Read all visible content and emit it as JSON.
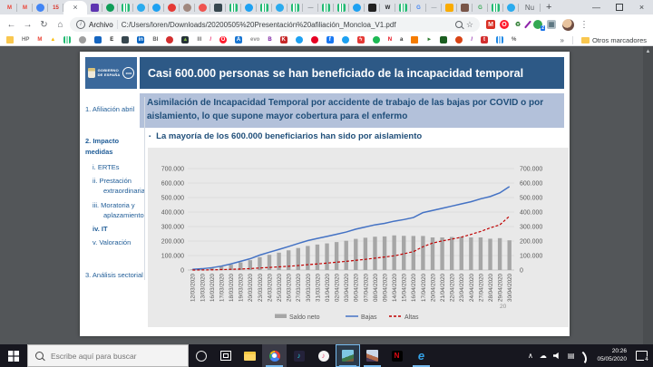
{
  "browser": {
    "new_tab_label": "+",
    "active_tab_close": "×",
    "window_controls": {
      "minimize": "—",
      "close": "×"
    },
    "tabs": [
      {
        "name": "gmail-tab",
        "glyph": "M",
        "fg": "#ea4335"
      },
      {
        "name": "gmail-tab-2",
        "glyph": "M",
        "fg": "#ea4335"
      },
      {
        "name": "account-tab",
        "bg": "#4285f4",
        "round": true
      },
      {
        "name": "calendar-tab",
        "glyph": "15",
        "fg": "#d93025"
      },
      {
        "name": "pdf-tab",
        "type": "active"
      },
      {
        "name": "purple-app-tab",
        "bg": "#5e35b1"
      },
      {
        "name": "green-dot-tab",
        "bg": "#0f9d58",
        "round": true
      },
      {
        "name": "green-app-tab",
        "bg": "#21ba72",
        "kind": "bars"
      },
      {
        "name": "telegram-tab",
        "bg": "#2aabee",
        "round": true
      },
      {
        "name": "twitter-tab",
        "bg": "#1da1f2",
        "round": true
      },
      {
        "name": "red-circle-tab",
        "bg": "#e53935",
        "round": true
      },
      {
        "name": "tan-app-tab",
        "bg": "#a1887f",
        "round": true
      },
      {
        "name": "red-heart-tab",
        "bg": "#ef5350",
        "round": true
      },
      {
        "name": "dark-app-tab",
        "bg": "#37474f"
      },
      {
        "name": "green-app-tab-2",
        "bg": "#21ba72",
        "kind": "bars"
      },
      {
        "name": "twitter-tab-2",
        "bg": "#1da1f2",
        "round": true
      },
      {
        "name": "green-app-tab-3",
        "bg": "#21ba72",
        "kind": "bars"
      },
      {
        "name": "telegram-tab-2",
        "bg": "#2aabee",
        "round": true
      },
      {
        "name": "green-app-tab-4",
        "bg": "#21ba72",
        "kind": "bars"
      },
      {
        "name": "dash-tab",
        "glyph": "—",
        "fg": "#80868b"
      },
      {
        "name": "green-app-tab-5",
        "bg": "#21ba72",
        "kind": "bars"
      },
      {
        "name": "green-app-tab-6",
        "bg": "#21ba72",
        "kind": "bars"
      },
      {
        "name": "twitter-tab-3",
        "bg": "#1da1f2",
        "round": true
      },
      {
        "name": "dark-app-tab-2",
        "bg": "#212121"
      },
      {
        "name": "wikipedia-tab",
        "glyph": "W",
        "fg": "#202124"
      },
      {
        "name": "green-app-tab-7",
        "bg": "#21ba72",
        "kind": "bars"
      },
      {
        "name": "google-tab",
        "glyph": "G",
        "fg": "#4285f4"
      },
      {
        "name": "dash-tab-2",
        "glyph": "—",
        "fg": "#9aa0a6"
      },
      {
        "name": "yellow-app-tab",
        "bg": "#f9ab00"
      },
      {
        "name": "brown-app-tab",
        "bg": "#795548"
      },
      {
        "name": "google-tab-2",
        "glyph": "G",
        "fg": "#34a853"
      },
      {
        "name": "green-app-tab-8",
        "bg": "#21ba72",
        "kind": "bars"
      },
      {
        "name": "telegram-tab-3",
        "bg": "#2aabee",
        "round": true
      },
      {
        "name": "nu-tab",
        "type": "text",
        "label": "Nu"
      }
    ],
    "toolbar": {
      "back": "←",
      "forward": "→",
      "reload": "↻",
      "home": "⌂",
      "info_icon": "i",
      "address_prefix": "Archivo",
      "address_path": "C:/Users/loren/Downloads/20200505%20Presentación%20afiliación_Moncloa_V1.pdf",
      "bookmark_star": "☆",
      "menu_kebab": "⋮"
    },
    "extensions": [
      {
        "name": "m14-extension-icon",
        "bg": "#d93025",
        "glyph": "M",
        "fg": "#fff"
      },
      {
        "name": "opera-extension-icon",
        "bg": "#ff1b2d",
        "round": true,
        "glyph": "O",
        "fg": "#fff"
      },
      {
        "name": "recycle-extension-icon",
        "glyph": "♻",
        "fg": "#2e7d32"
      },
      {
        "name": "pen-extension-icon",
        "kind": "pen"
      },
      {
        "name": "green-badge-extension-icon",
        "bg": "#34a853",
        "round": true,
        "badge": "2"
      },
      {
        "name": "gray-extension-icon",
        "bg": "#b0bec5",
        "glyph": "▦",
        "fg": "#546e7a"
      }
    ],
    "bookmarks": [
      {
        "name": "folder-bookmark",
        "bg": "#f9c74f",
        "kind": "folder"
      },
      {
        "name": "hp-bookmark",
        "glyph": "HP",
        "fg": "#757575",
        "kind": "text"
      },
      {
        "name": "gmail-bookmark",
        "glyph": "M",
        "fg": "#ea4335",
        "kind": "text"
      },
      {
        "name": "drive-bookmark",
        "glyph": "▲",
        "fg": "#fbbc04",
        "kind": "text"
      },
      {
        "name": "green-app-bookmark",
        "bg": "#21ba72",
        "kind": "bars"
      },
      {
        "name": "globe-bookmark",
        "bg": "#9e9e9e",
        "round": true
      },
      {
        "name": "blue-app-bookmark",
        "bg": "#1565c0"
      },
      {
        "name": "e-bookmark",
        "glyph": "E",
        "fg": "#212121",
        "kind": "text"
      },
      {
        "name": "dark-app-bookmark",
        "bg": "#37474f"
      },
      {
        "name": "linkedin-bookmark",
        "bg": "#0a66c2",
        "glyph": "in",
        "fg": "#fff"
      },
      {
        "name": "bi-bookmark",
        "glyph": "BI",
        "fg": "#616161",
        "kind": "text"
      },
      {
        "name": "apple-red-bookmark",
        "bg": "#d32f2f",
        "round": true
      },
      {
        "name": "android-app-bookmark",
        "bg": "#263238",
        "glyph": "▲",
        "fg": "#7cb342"
      },
      {
        "name": "iii-bookmark",
        "glyph": "III",
        "fg": "#757575",
        "kind": "text"
      },
      {
        "name": "slash-bookmark",
        "glyph": "/",
        "fg": "#e91e63",
        "kind": "text"
      },
      {
        "name": "opera-bookmark",
        "bg": "#ff1b2d",
        "round": true,
        "glyph": "O",
        "fg": "#fff"
      },
      {
        "name": "a-blue-bookmark",
        "bg": "#1976d2",
        "glyph": "A",
        "fg": "#fff"
      },
      {
        "name": "evo-bookmark",
        "glyph": "evo",
        "fg": "#8d8d8d",
        "kind": "text"
      },
      {
        "name": "bluetooth-bookmark",
        "glyph": "B",
        "fg": "#7b1fa2",
        "kind": "text"
      },
      {
        "name": "k-red-bookmark",
        "bg": "#c62828",
        "glyph": "K",
        "fg": "#fff"
      },
      {
        "name": "twitter-bookmark",
        "bg": "#1da1f2",
        "round": true
      },
      {
        "name": "pinterest-bookmark",
        "bg": "#e60023",
        "round": true
      },
      {
        "name": "facebook-bookmark",
        "bg": "#1877f2",
        "glyph": "f",
        "fg": "#fff"
      },
      {
        "name": "twitter-bookmark-2",
        "bg": "#1da1f2",
        "round": true
      },
      {
        "name": "flash-bookmark",
        "bg": "#e53935",
        "glyph": "ϟ",
        "fg": "#fff"
      },
      {
        "name": "spotify-bookmark",
        "bg": "#1db954",
        "round": true
      },
      {
        "name": "netflix-bookmark",
        "glyph": "N",
        "fg": "#e50914",
        "kind": "text"
      },
      {
        "name": "amazon-bookmark",
        "glyph": "a",
        "fg": "#333333",
        "kind": "text"
      },
      {
        "name": "folder-orange-bookmark",
        "bg": "#f57c00",
        "kind": "folder"
      },
      {
        "name": "play-green-bookmark",
        "glyph": "►",
        "fg": "#2e7d32",
        "kind": "text"
      },
      {
        "name": "green-square-bookmark",
        "bg": "#1b5e20"
      },
      {
        "name": "gear-red-bookmark",
        "bg": "#d84315",
        "round": true
      },
      {
        "name": "pen-bookmark",
        "glyph": "/",
        "fg": "#8e24aa",
        "kind": "text"
      },
      {
        "name": "tumblr-bookmark",
        "bg": "#d32f2f",
        "glyph": "t",
        "fg": "#fff"
      },
      {
        "name": "chart-bookmark",
        "bg": "#1e88e5",
        "kind": "bars"
      },
      {
        "name": "percent-bookmark",
        "glyph": "%",
        "fg": "#616161",
        "kind": "text"
      }
    ],
    "bookmarks_overflow": "»",
    "other_bookmarks": "Otros marcadores"
  },
  "slide": {
    "logo": {
      "line1": "GOBIERNO",
      "line2": "DE ESPAÑA",
      "agenda": "2030"
    },
    "header_title": "Casi 600.000 personas se han beneficiado de la incapacidad temporal",
    "subheader": "Asimilación de Incapacidad Temporal por accidente de trabajo de las bajas por COVID o por aislamiento, lo que supone mayor cobertura para el enfermo",
    "bullet": "La mayoría de los 600.000 beneficiarios han sido por aislamiento",
    "nav": [
      {
        "label": "1. Afiliación abril",
        "bold": false,
        "sub": false,
        "mt": 6
      },
      {
        "label": "2. Impacto medidas",
        "bold": true,
        "sub": false,
        "mt": 24
      },
      {
        "label": "i. ERTEs",
        "bold": false,
        "sub": true,
        "mt": 6
      },
      {
        "label": "ii. Prestación extraordinaria",
        "bold": false,
        "sub": true,
        "mt": 4
      },
      {
        "label": "iii. Moratoria y aplazamiento",
        "bold": false,
        "sub": true,
        "mt": 4
      },
      {
        "label": "iv. IT",
        "bold": true,
        "sub": true,
        "mt": 4
      },
      {
        "label": "v. Valoración",
        "bold": false,
        "sub": true,
        "mt": 4
      },
      {
        "label": "3. Análisis sectorial",
        "bold": false,
        "sub": false,
        "mt": 24
      }
    ],
    "page_number": "20",
    "colors": {
      "header_blue": "#2d5986",
      "subheader_bg": "#b3c1da",
      "navy_text": "#1f4e79"
    }
  },
  "chart_data": {
    "type": "combo",
    "title": "",
    "categories": [
      "12/03/2020",
      "13/03/2020",
      "16/03/2020",
      "17/03/2020",
      "18/03/2020",
      "19/03/2020",
      "20/03/2020",
      "23/03/2020",
      "24/03/2020",
      "25/03/2020",
      "26/03/2020",
      "27/03/2020",
      "30/03/2020",
      "31/03/2020",
      "01/04/2020",
      "02/04/2020",
      "03/04/2020",
      "06/04/2020",
      "07/04/2020",
      "08/04/2020",
      "09/04/2020",
      "14/04/2020",
      "15/04/2020",
      "16/04/2020",
      "17/04/2020",
      "20/04/2020",
      "21/04/2020",
      "22/04/2020",
      "23/04/2020",
      "24/04/2020",
      "27/04/2020",
      "28/04/2020",
      "29/04/2020",
      "30/04/2020"
    ],
    "series": [
      {
        "name": "Saldo neto",
        "type": "bar",
        "color": "#a6a6a6",
        "values": [
          5000,
          8500,
          14500,
          24000,
          37000,
          53000,
          68000,
          89000,
          105000,
          120000,
          136000,
          152000,
          166000,
          176000,
          184000,
          193000,
          202000,
          215000,
          223000,
          230000,
          232000,
          239000,
          236000,
          235000,
          235000,
          225000,
          225000,
          228000,
          229000,
          225000,
          225000,
          216000,
          220000,
          205000
        ]
      },
      {
        "name": "Bajas",
        "type": "line",
        "style": "solid",
        "color": "#4472c4",
        "values": [
          5000,
          9000,
          16000,
          27000,
          42000,
          60000,
          78000,
          103000,
          123000,
          142000,
          162000,
          183000,
          203000,
          218000,
          232000,
          247000,
          262000,
          282000,
          297000,
          312000,
          322000,
          337000,
          348000,
          362000,
          396000,
          411000,
          426000,
          441000,
          456000,
          471000,
          491000,
          507000,
          532000,
          576000
        ]
      },
      {
        "name": "Altas",
        "type": "line",
        "style": "dashed",
        "color": "#c00000",
        "values": [
          0,
          500,
          1500,
          3000,
          5000,
          7000,
          10000,
          14000,
          18000,
          22000,
          26000,
          31000,
          37000,
          42000,
          48000,
          54000,
          60000,
          67000,
          74000,
          82000,
          90000,
          98000,
          112000,
          127000,
          161000,
          186000,
          201000,
          213000,
          227000,
          246000,
          266000,
          291000,
          312000,
          371000
        ]
      }
    ],
    "ylim": [
      0,
      700000
    ],
    "yticks": [
      "0",
      "100.000",
      "200.000",
      "300.000",
      "400.000",
      "500.000",
      "600.000",
      "700.000"
    ],
    "y_axis_right": true,
    "grid": true,
    "legend_position": "bottom"
  },
  "taskbar": {
    "search_placeholder": "Escribe aquí para buscar",
    "apps": [
      {
        "name": "cortana-icon",
        "kind": "ring"
      },
      {
        "name": "task-view-icon",
        "kind": "taskview"
      },
      {
        "name": "file-explorer-icon",
        "kind": "folder"
      },
      {
        "name": "chrome-icon",
        "kind": "chrome",
        "focused": true,
        "running": true
      },
      {
        "name": "amazon-music-icon",
        "kind": "sq",
        "bg": "#24223a",
        "glyph": "♪",
        "fg": "#25d1da"
      },
      {
        "name": "itunes-icon",
        "kind": "sq",
        "circ": true,
        "bg": "#f4f4f4",
        "glyph": "♪",
        "fg": "#e94f77"
      },
      {
        "name": "photos-app-icon",
        "kind": "photo",
        "selected": true,
        "running": true
      },
      {
        "name": "image-viewer-icon",
        "kind": "photo2",
        "running": true
      },
      {
        "name": "netflix-icon",
        "kind": "sq",
        "bg": "#000000",
        "glyph": "N",
        "fg": "#e50914"
      },
      {
        "name": "edge-icon",
        "kind": "edge",
        "glyph": "e",
        "running": true
      }
    ],
    "tray_icons": [
      {
        "name": "tray-expand-icon",
        "glyph": "∧"
      },
      {
        "name": "onedrive-icon",
        "glyph": "☁"
      },
      {
        "name": "volume-icon",
        "kind": "speaker"
      },
      {
        "name": "keyboard-icon",
        "glyph": "▤"
      },
      {
        "name": "network-icon",
        "kind": "wifi"
      }
    ],
    "clock": {
      "time": "20:26",
      "date": "05/05/2020"
    },
    "notification_count": "4"
  }
}
